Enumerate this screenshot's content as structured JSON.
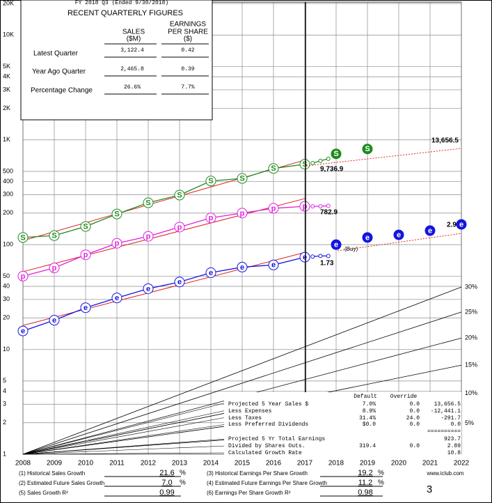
{
  "header": {
    "fy": "FY 2018 Q3 (Ended 9/30/2018)",
    "title": "RECENT QUARTERLY FIGURES",
    "col_sales": [
      "SALES",
      "($M)"
    ],
    "col_eps": [
      "EARNINGS",
      "PER SHARE",
      "($)"
    ],
    "rows": [
      {
        "label": "Latest Quarter",
        "sales": "3,122.4",
        "eps": "0.42"
      },
      {
        "label": "Year Ago Quarter",
        "sales": "2,465.8",
        "eps": "0.39"
      },
      {
        "label": "Percentage Change",
        "sales": "26.6%",
        "eps": "7.7%"
      }
    ]
  },
  "chart_data": {
    "type": "line",
    "yscale": "log",
    "xlim": [
      2008,
      2022
    ],
    "xticks": [
      2008,
      2009,
      2010,
      2011,
      2012,
      2013,
      2014,
      2015,
      2016,
      2017,
      2018,
      2019,
      2020,
      2021,
      2022
    ],
    "ylim": [
      1,
      20000
    ],
    "yticks": [
      {
        "value": 20000,
        "label": "20K"
      },
      {
        "value": 10000,
        "label": "10K"
      },
      {
        "value": 5000,
        "label": "5K"
      },
      {
        "value": 4000,
        "label": "4K"
      },
      {
        "value": 3000,
        "label": "3K"
      },
      {
        "value": 2000,
        "label": "2K"
      },
      {
        "value": 1000,
        "label": "1K"
      },
      500,
      400,
      300,
      200,
      100,
      50,
      40,
      30,
      20,
      10,
      5,
      4,
      3,
      2,
      1
    ],
    "grid": true,
    "series": [
      {
        "marker": "S",
        "color": "#1f8a1f",
        "history": {
          "x": [
            2008,
            2009,
            2010,
            2011,
            2012,
            2013,
            2014,
            2015,
            2016,
            2017
          ],
          "values": [
            117,
            122,
            149,
            196,
            251,
            297,
            405,
            428,
            533,
            585
          ]
        },
        "recent": {
          "x": [
            2017.25,
            2017.5,
            2017.75
          ],
          "values": [
            600,
            630,
            660
          ]
        },
        "projected": {
          "x": [
            2018,
            2019
          ],
          "values": [
            735,
            818
          ]
        }
      },
      {
        "marker": "p",
        "color": "#e020e0",
        "history": {
          "x": [
            2008,
            2009,
            2010,
            2011,
            2012,
            2013,
            2014,
            2015,
            2016,
            2017
          ],
          "values": [
            50,
            60,
            80,
            103,
            120,
            147,
            180,
            200,
            222,
            232
          ]
        },
        "recent": {
          "x": [
            2017.25,
            2017.5,
            2017.75
          ],
          "values": [
            232,
            232,
            235
          ]
        }
      },
      {
        "marker": "e",
        "color": "#1414e0",
        "history": {
          "x": [
            2008,
            2009,
            2010,
            2011,
            2012,
            2013,
            2014,
            2015,
            2016,
            2017
          ],
          "values": [
            15,
            19,
            25,
            31,
            38,
            44,
            54,
            61,
            64,
            76
          ]
        },
        "recent": {
          "x": [
            2017.25,
            2017.5,
            2017.75
          ],
          "values": [
            77,
            78,
            78
          ]
        },
        "projected": {
          "x": [
            2018,
            2019,
            2020,
            2021,
            2022
          ],
          "values": [
            100,
            117,
            124,
            136,
            156
          ]
        }
      }
    ],
    "growth_lines": [
      {
        "value": 30,
        "label": "30%"
      },
      {
        "value": 25,
        "label": "25%"
      },
      {
        "value": 20,
        "label": "20%"
      },
      {
        "value": 15,
        "label": "15%"
      },
      {
        "value": 10,
        "label": "10%"
      },
      {
        "value": 5,
        "label": "5%"
      }
    ],
    "annotations": [
      "13,656.5",
      "9,736.9",
      "782.9",
      "2.9",
      "1.73",
      "(Buy)"
    ]
  },
  "projection_table": {
    "headers": [
      "Default",
      "Override"
    ],
    "rows": [
      {
        "label": "Projected 5 Year Sales $",
        "default": "7.0%",
        "override": "0.0",
        "value": "13,656.5"
      },
      {
        "label": "Less Expenses",
        "default": "8.9%",
        "override": "0.0",
        "value": "-12,441.1"
      },
      {
        "label": "Less Taxes",
        "default": "31.4%",
        "override": "24.0",
        "value": "-291.7"
      },
      {
        "label": "Less Preferred Dividends",
        "default": "$0.0",
        "override": "0.0",
        "value": "0.0"
      },
      {
        "value": "=========="
      },
      {
        "label": "Projected 5 Yr Total Earnings",
        "value": "923.7"
      },
      {
        "label": "Divided by Shares Outs.",
        "default": "319.4",
        "override": "0.0",
        "value": "2.89"
      },
      {
        "label": "Calculated Growth Rate",
        "value": "10.8"
      }
    ]
  },
  "summary": {
    "rows": [
      {
        "label": "(1) Historical Sales Growth",
        "value": "21.6",
        "unit": "%"
      },
      {
        "label": "(2) Estimated Future Sales Growth",
        "value": "7.0",
        "unit": "%"
      },
      {
        "label": "(5) Sales Growth R²",
        "value": "0.99"
      },
      {
        "label": "(3) Historical Earnings Per Share Growth",
        "value": "19.2",
        "unit": "%"
      },
      {
        "label": "(4) Estimated Future Earnings Per Share Growth",
        "value": "11.2",
        "unit": "%"
      },
      {
        "label": "(6) Earnings Per Share Growth R²",
        "value": "0.98"
      }
    ],
    "site": "www.iclub.com",
    "page": "3"
  }
}
